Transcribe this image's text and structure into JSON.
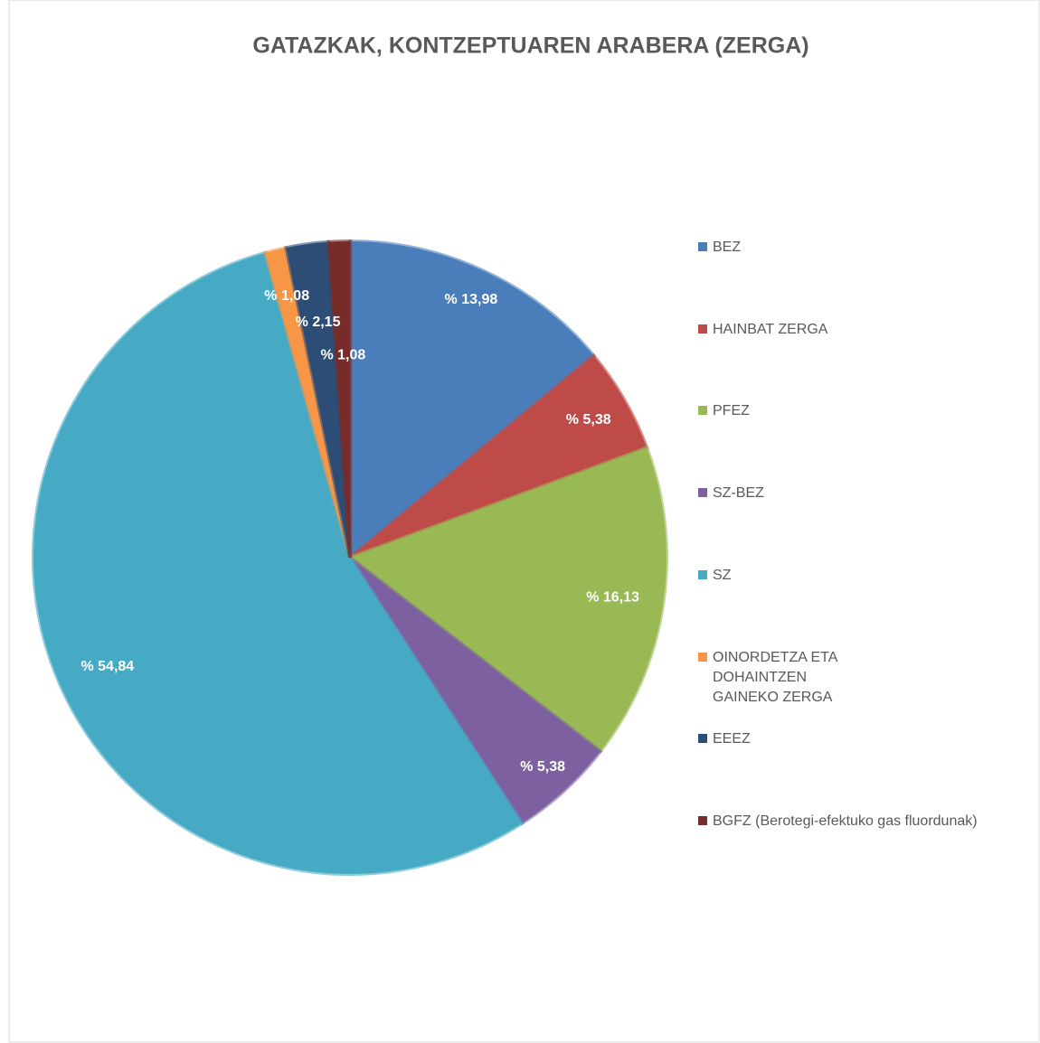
{
  "chart_data": {
    "type": "pie",
    "title": "GATAZKAK, KONTZEPTUAREN ARABERA (ZERGA)",
    "categories": [
      "BEZ",
      "HAINBAT ZERGA",
      "PFEZ",
      "SZ-BEZ",
      "SZ",
      "OINORDETZA ETA DOHAINTZEN GAINEKO ZERGA",
      "EEEZ",
      "BGFZ (Berotegi-efektuko gas fluordunak)"
    ],
    "values": [
      13.98,
      5.38,
      16.13,
      5.38,
      54.84,
      1.08,
      2.15,
      1.08
    ],
    "value_labels": [
      "% 13,98",
      "% 5,38",
      "% 16,13",
      "% 5,38",
      "% 54,84",
      "% 1,08",
      "% 2,15",
      "% 1,08"
    ],
    "colors": [
      "#4a7ebb",
      "#be4b48",
      "#98b954",
      "#7d60a0",
      "#46aac5",
      "#f79646",
      "#2c4d75",
      "#772c2a"
    ],
    "legend": "right"
  }
}
